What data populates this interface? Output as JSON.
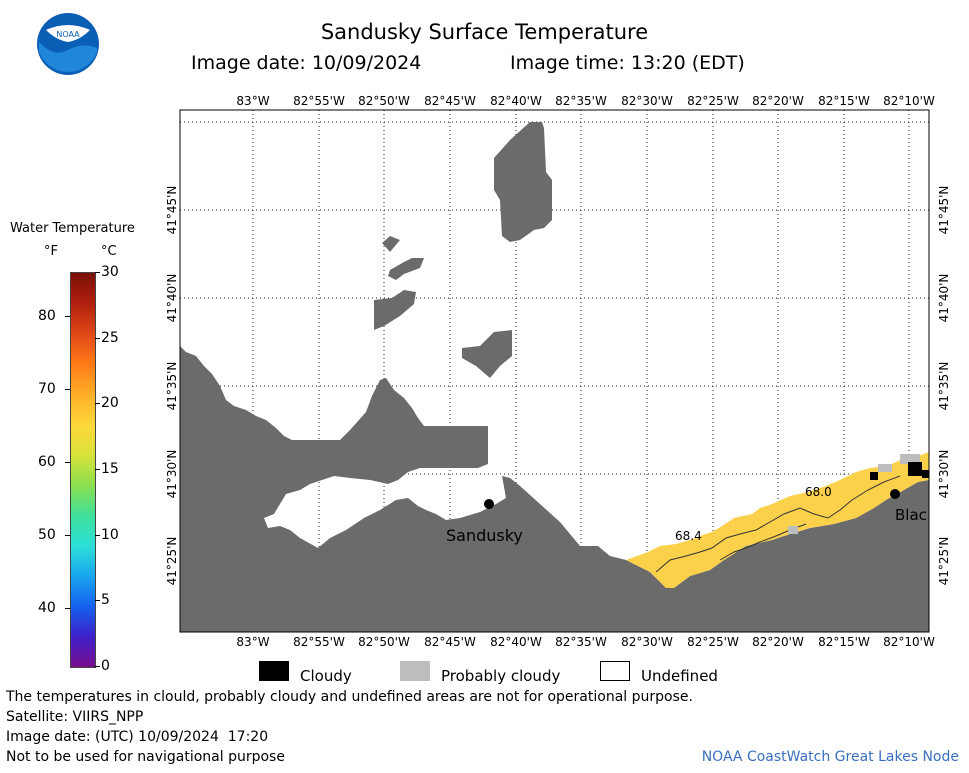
{
  "header": {
    "title": "Sandusky Surface Temperature",
    "image_date_label": "Image date: 10/09/2024",
    "image_time_label": "Image time: 13:20 (EDT)"
  },
  "logo": {
    "text": "NOAA"
  },
  "colorbar": {
    "title": "Water Temperature",
    "unit_f": "°F",
    "unit_c": "°C",
    "f_ticks": [
      "40",
      "50",
      "60",
      "70",
      "80"
    ],
    "c_ticks": [
      "0",
      "5",
      "10",
      "15",
      "20",
      "25",
      "30"
    ],
    "colors": [
      "#7a0d8e",
      "#3c20c8",
      "#1560ef",
      "#1aa6f0",
      "#2ce0d6",
      "#3fe09a",
      "#8be04f",
      "#d9e23a",
      "#ffd83a",
      "#ffae28",
      "#ff7a18",
      "#e04818",
      "#b0200e",
      "#7a1008"
    ]
  },
  "map": {
    "top_lon_labels": [
      "83°W",
      "82°55'W",
      "82°50'W",
      "82°45'W",
      "82°40'W",
      "82°35'W",
      "82°30'W",
      "82°25'W",
      "82°20'W",
      "82°15'W",
      "82°10'W"
    ],
    "bottom_lon_labels": [
      "83°W",
      "82°55'W",
      "82°50'W",
      "82°45'W",
      "82°40'W",
      "82°35'W",
      "82°30'W",
      "82°25'W",
      "82°20'W",
      "82°15'W",
      "82°10'W"
    ],
    "lat_labels": [
      "41°45'N",
      "41°40'N",
      "41°35'N",
      "41°30'N",
      "41°25'N"
    ],
    "place_labels": {
      "sandusky": "Sandusky",
      "black": "Blac"
    },
    "temperature_labels": [
      "68.4",
      "68.0"
    ],
    "land_color": "#6b6b6b",
    "water_color": "#ffffff",
    "warm_water_color": "#fbd04a"
  },
  "legend": {
    "cloudy": "Cloudy",
    "probably_cloudy": "Probably cloudy",
    "undefined": "Undefined"
  },
  "footer": {
    "disclaimer": "The temperatures in clould, probably cloudy and undefined areas are not for operational purpose.",
    "satellite": "Satellite: VIIRS_NPP",
    "utc_date": "Image date: (UTC) 10/09/2024  17:20",
    "nav_warning": "Not to be used for navigational purpose",
    "credit": "NOAA CoastWatch Great Lakes Node",
    "credit_color": "#3a6fbf"
  }
}
